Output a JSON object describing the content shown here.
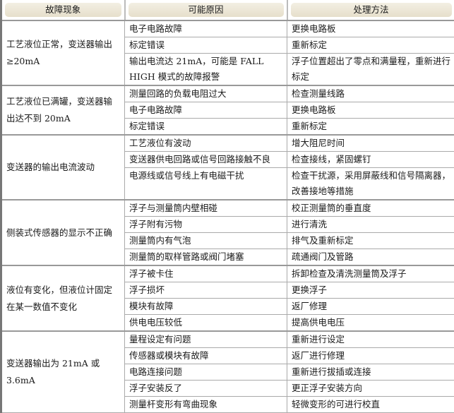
{
  "headers": [
    "故障现象",
    "可能原因",
    "处理方法"
  ],
  "groups": [
    {
      "symptom": "工艺液位正常，变送器输出≥20mA",
      "rows": [
        [
          "电子电路故障",
          "更换电路板"
        ],
        [
          "标定错误",
          "重新标定"
        ],
        [
          "输出电流达 21mA，可能是 FALL HIGH 模式的故障报警",
          "浮子位置超出了零点和满量程，重新进行标定"
        ]
      ]
    },
    {
      "symptom": "工艺液位已满罐，变送器输出达不到 20mA",
      "rows": [
        [
          "测量回路的负载电阻过大",
          "检查测量线路"
        ],
        [
          "电子电路故障",
          "更换电路板"
        ],
        [
          "标定错误",
          "重新标定"
        ]
      ]
    },
    {
      "symptom": "变送器的输出电流波动",
      "rows": [
        [
          "工艺液位有波动",
          "增大阻尼时间"
        ],
        [
          "变送器供电回路或信号回路接触不良",
          "检查接线，紧固螺钉"
        ],
        [
          "电源线或信号线上有电磁干扰",
          "检查干扰源，采用屏蔽线和信号隔离器，改善接地等措施"
        ]
      ]
    },
    {
      "symptom": "侧装式传感器的显示不正确",
      "rows": [
        [
          "浮子与测量筒内壁相碰",
          "校正测量筒的垂直度"
        ],
        [
          "浮子附有污物",
          "进行清洗"
        ],
        [
          "测量筒内有气泡",
          "排气及重新标定"
        ],
        [
          "测量筒的取样管路或阀门堵塞",
          "疏通阀门及管路"
        ]
      ]
    },
    {
      "symptom": "液位有变化，但液位计固定在某一数值不变化",
      "rows": [
        [
          "浮子被卡住",
          "拆卸检查及清洗测量筒及浮子"
        ],
        [
          "浮子损坏",
          "更换浮子"
        ],
        [
          "模块有故障",
          "返厂修理"
        ],
        [
          "供电电压较低",
          "提高供电电压"
        ]
      ]
    },
    {
      "symptom": "变送器输出为 21mA 或 3.6mA",
      "rows": [
        [
          "量程设定有问题",
          "重新进行设定"
        ],
        [
          "传感器或模块有故障",
          "返厂进行修理"
        ],
        [
          "电路连接问题",
          "重新进行拔插或连接"
        ],
        [
          "浮子安装反了",
          "更正浮子安装方向"
        ],
        [
          "测量杆变形有弯曲现象",
          "轻微变形的可进行校直"
        ]
      ]
    }
  ]
}
